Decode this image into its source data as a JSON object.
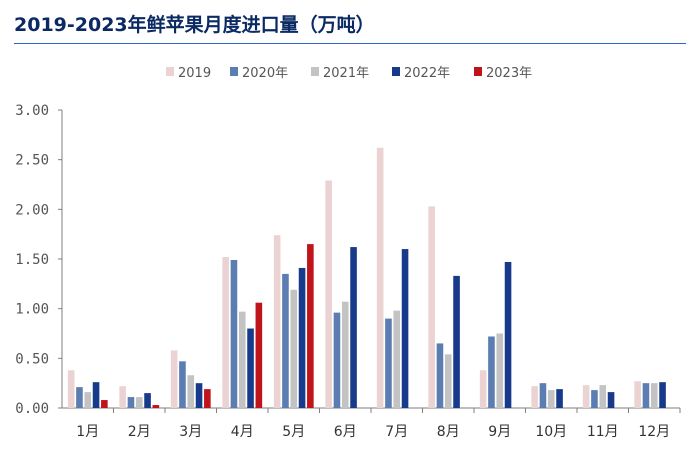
{
  "title": "2019-2023年鲜苹果月度进口量（万吨）",
  "chart_data": {
    "type": "bar",
    "title": "2019-2023年鲜苹果月度进口量（万吨）",
    "categories": [
      "1月",
      "2月",
      "3月",
      "4月",
      "5月",
      "6月",
      "7月",
      "8月",
      "9月",
      "10月",
      "11月",
      "12月"
    ],
    "ylim": [
      0,
      3.0
    ],
    "yticks": [
      "0.00",
      "0.50",
      "1.00",
      "1.50",
      "2.00",
      "2.50",
      "3.00"
    ],
    "legend_position": "top-center",
    "grid": false,
    "series": [
      {
        "name": "2019",
        "color": "#ecd3d3",
        "values": [
          0.38,
          0.22,
          0.58,
          1.52,
          1.74,
          2.29,
          2.62,
          2.03,
          0.38,
          0.22,
          0.23,
          0.27
        ]
      },
      {
        "name": "2020年",
        "color": "#5b7db1",
        "values": [
          0.21,
          0.11,
          0.47,
          1.49,
          1.35,
          0.96,
          0.9,
          0.65,
          0.72,
          0.25,
          0.18,
          0.25
        ]
      },
      {
        "name": "2021年",
        "color": "#c3c3c3",
        "values": [
          0.16,
          0.11,
          0.33,
          0.97,
          1.19,
          1.07,
          0.98,
          0.54,
          0.75,
          0.18,
          0.23,
          0.25
        ]
      },
      {
        "name": "2022年",
        "color": "#173b8a",
        "values": [
          0.26,
          0.15,
          0.25,
          0.8,
          1.41,
          1.62,
          1.6,
          1.33,
          1.47,
          0.19,
          0.16,
          0.26
        ]
      },
      {
        "name": "2023年",
        "color": "#c0141b",
        "values": [
          0.08,
          0.03,
          0.19,
          1.06,
          1.65,
          null,
          null,
          null,
          null,
          null,
          null,
          null
        ]
      }
    ]
  }
}
